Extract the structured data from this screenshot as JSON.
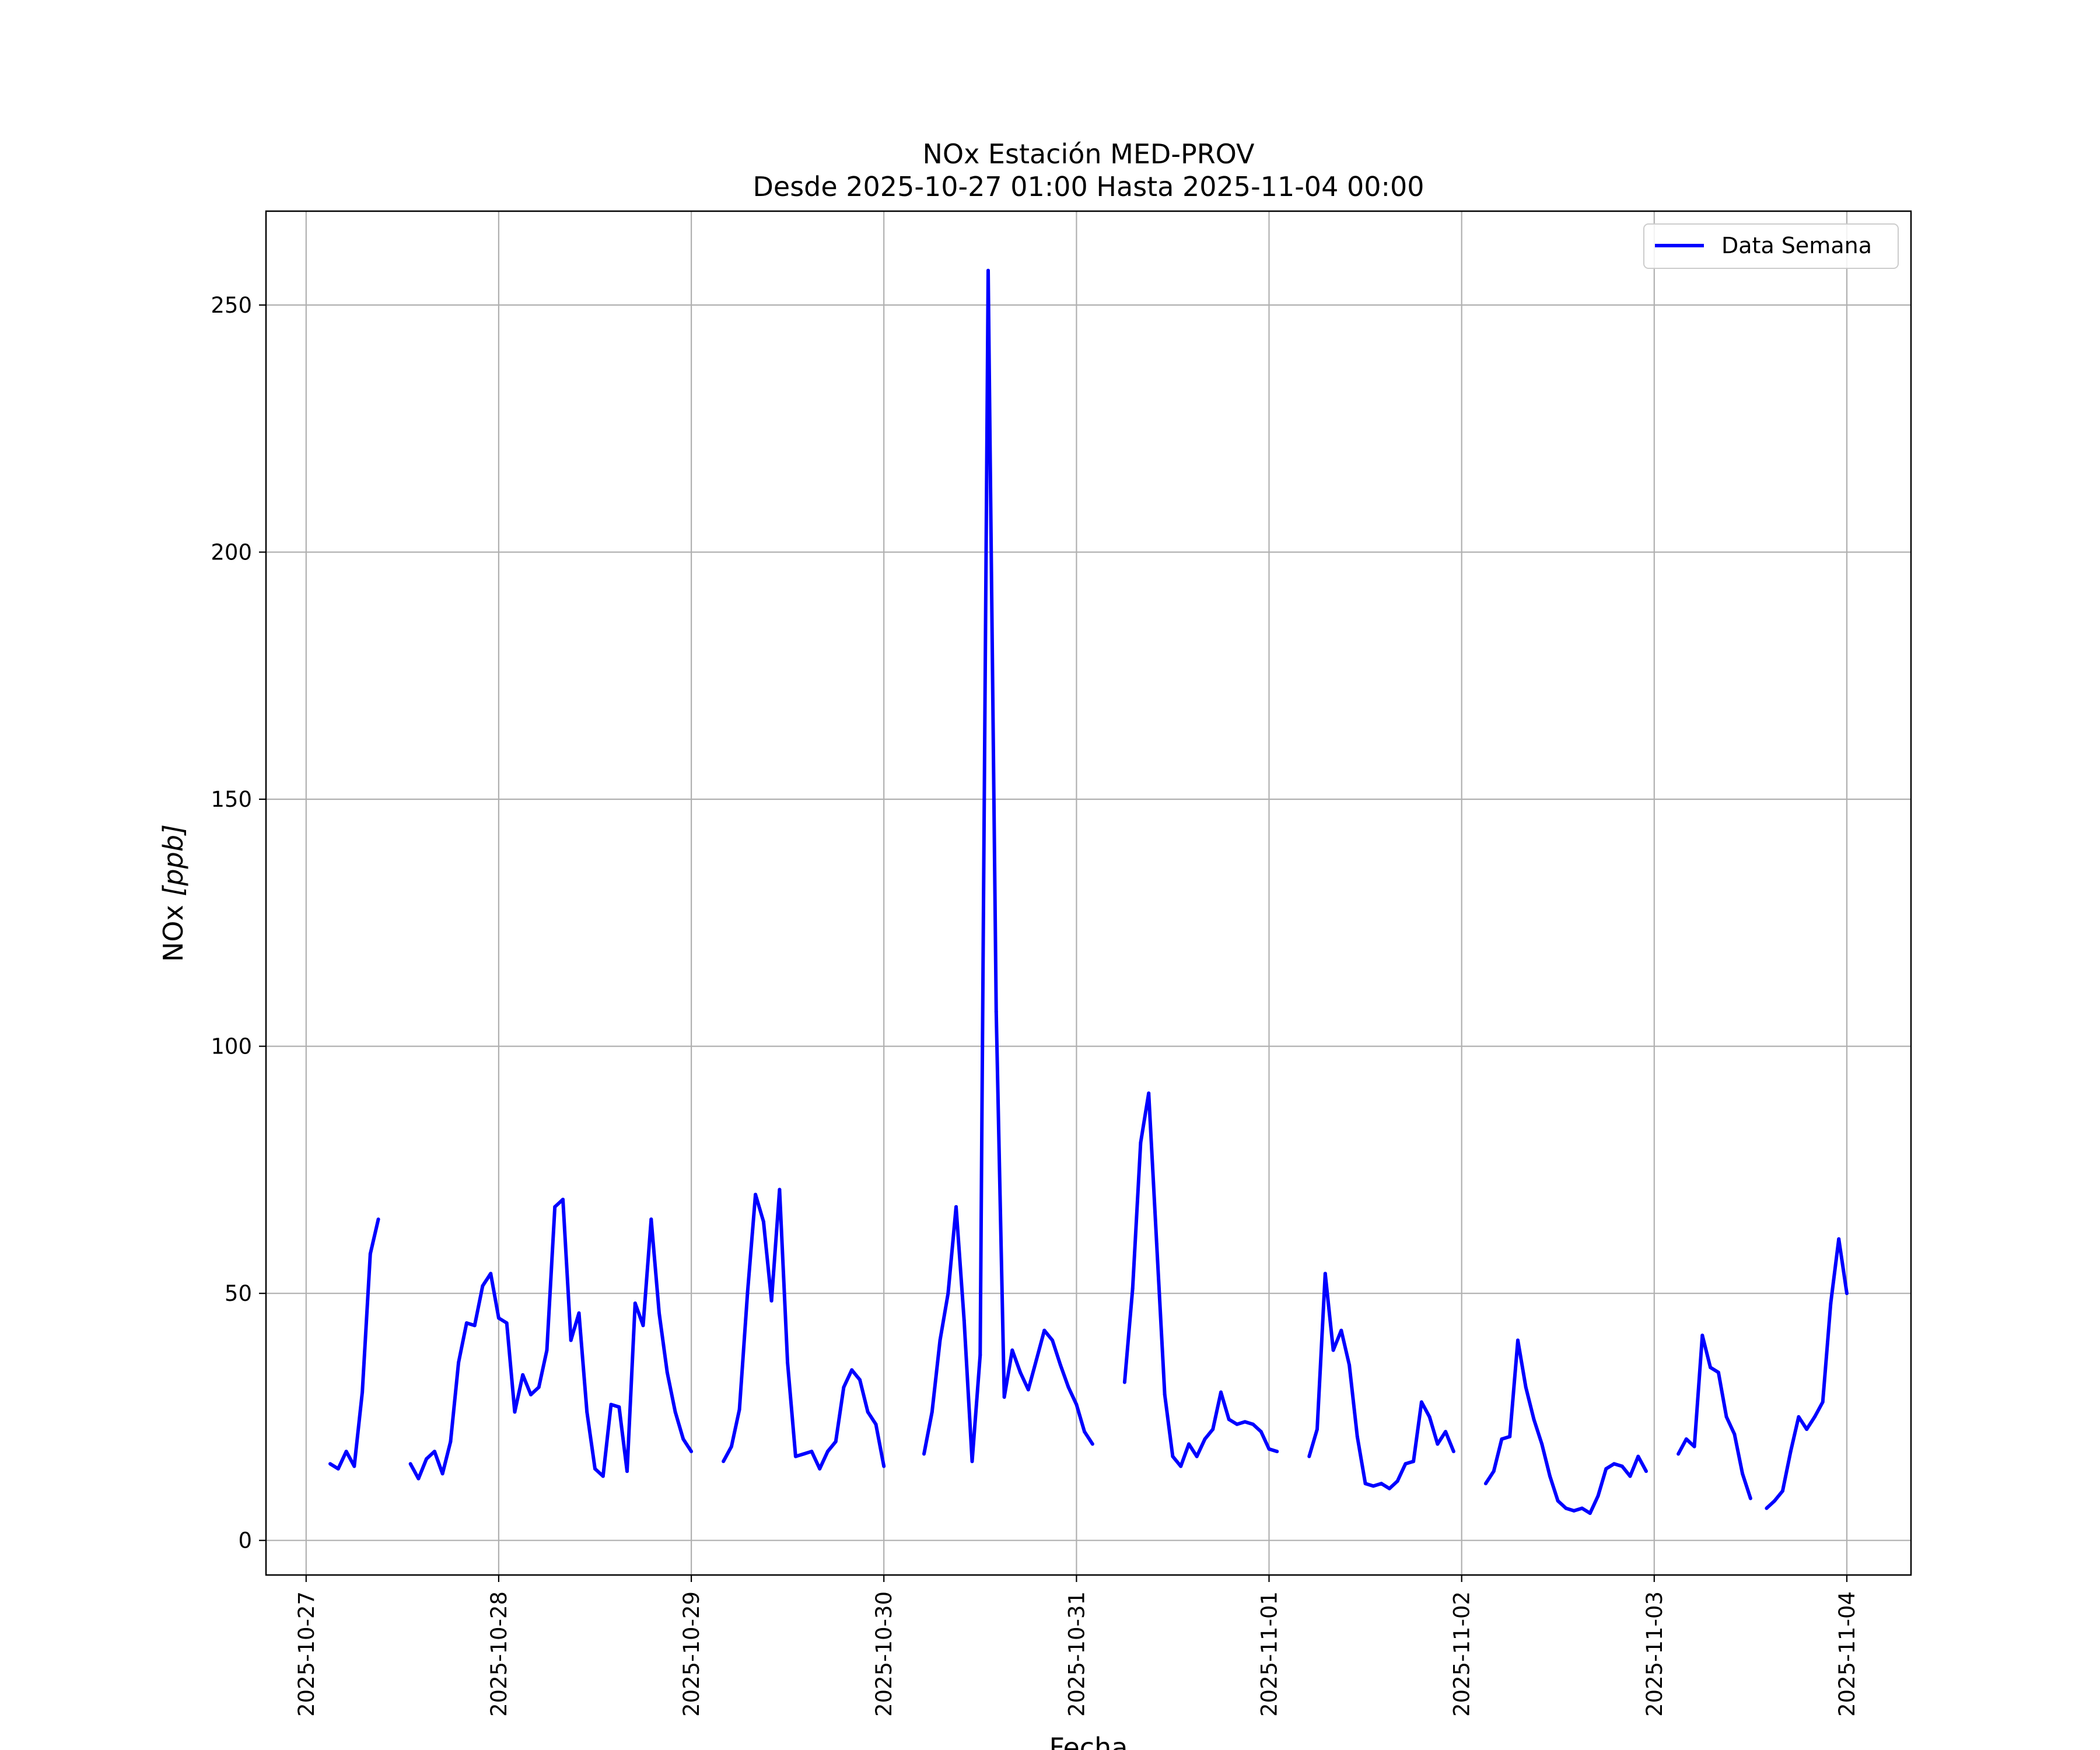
{
  "chart_data": {
    "type": "line",
    "title": "NOx Estación MED-PROV",
    "subtitle": "Desde 2025-10-27 01:00 Hasta 2025-11-04 00:00",
    "xlabel": "Fecha",
    "ylabel": "NOx [ppb]",
    "ylabel_main": "NOx ",
    "ylabel_unit": "[ppb]",
    "xlim": [
      "2025-10-26 19:00",
      "2025-11-04 08:00"
    ],
    "ylim": [
      -7,
      269
    ],
    "grid": true,
    "legend_position": "top-right",
    "x_ticks": [
      "2025-10-27",
      "2025-10-28",
      "2025-10-29",
      "2025-10-30",
      "2025-10-31",
      "2025-11-01",
      "2025-11-02",
      "2025-11-03",
      "2025-11-04"
    ],
    "y_ticks": [
      0,
      50,
      100,
      150,
      200,
      250
    ],
    "y_tick_labels": [
      "0",
      "50",
      "100",
      "150",
      "200",
      "250"
    ],
    "series": [
      {
        "name": "Data Semana",
        "color": "#0000ff",
        "segments": [
          [
            [
              "2025-10-27 03:00",
              15.5
            ],
            [
              "2025-10-27 04:00",
              14.5
            ],
            [
              "2025-10-27 05:00",
              18
            ],
            [
              "2025-10-27 06:00",
              15
            ],
            [
              "2025-10-27 07:00",
              30
            ],
            [
              "2025-10-27 08:00",
              58
            ],
            [
              "2025-10-27 09:00",
              65
            ]
          ],
          [
            [
              "2025-10-27 13:00",
              15.5
            ],
            [
              "2025-10-27 14:00",
              12.5
            ],
            [
              "2025-10-27 15:00",
              16.5
            ],
            [
              "2025-10-27 16:00",
              18
            ],
            [
              "2025-10-27 17:00",
              13.5
            ],
            [
              "2025-10-27 18:00",
              20
            ],
            [
              "2025-10-27 19:00",
              36
            ],
            [
              "2025-10-27 20:00",
              44
            ],
            [
              "2025-10-27 21:00",
              43.5
            ],
            [
              "2025-10-27 22:00",
              51.5
            ],
            [
              "2025-10-27 23:00",
              54
            ],
            [
              "2025-10-28 00:00",
              45
            ],
            [
              "2025-10-28 01:00",
              44
            ],
            [
              "2025-10-28 02:00",
              26
            ],
            [
              "2025-10-28 03:00",
              33.5
            ],
            [
              "2025-10-28 04:00",
              29.5
            ],
            [
              "2025-10-28 05:00",
              31
            ],
            [
              "2025-10-28 06:00",
              38.5
            ],
            [
              "2025-10-28 07:00",
              67.5
            ],
            [
              "2025-10-28 08:00",
              69
            ],
            [
              "2025-10-28 09:00",
              40.5
            ],
            [
              "2025-10-28 10:00",
              46
            ],
            [
              "2025-10-28 11:00",
              26
            ],
            [
              "2025-10-28 12:00",
              14.5
            ],
            [
              "2025-10-28 13:00",
              13
            ],
            [
              "2025-10-28 14:00",
              27.5
            ],
            [
              "2025-10-28 15:00",
              27
            ],
            [
              "2025-10-28 16:00",
              14
            ],
            [
              "2025-10-28 17:00",
              48
            ],
            [
              "2025-10-28 18:00",
              43.5
            ],
            [
              "2025-10-28 19:00",
              65
            ],
            [
              "2025-10-28 20:00",
              46
            ],
            [
              "2025-10-28 21:00",
              34
            ],
            [
              "2025-10-28 22:00",
              26
            ],
            [
              "2025-10-28 23:00",
              20.5
            ],
            [
              "2025-10-29 00:00",
              18
            ]
          ],
          [
            [
              "2025-10-29 04:00",
              16
            ],
            [
              "2025-10-29 05:00",
              19
            ],
            [
              "2025-10-29 06:00",
              26.5
            ],
            [
              "2025-10-29 07:00",
              50
            ],
            [
              "2025-10-29 08:00",
              70
            ],
            [
              "2025-10-29 09:00",
              64.5
            ],
            [
              "2025-10-29 10:00",
              48.5
            ],
            [
              "2025-10-29 11:00",
              71
            ],
            [
              "2025-10-29 12:00",
              36
            ],
            [
              "2025-10-29 13:00",
              17
            ],
            [
              "2025-10-29 14:00",
              17.5
            ],
            [
              "2025-10-29 15:00",
              18
            ],
            [
              "2025-10-29 16:00",
              14.5
            ],
            [
              "2025-10-29 17:00",
              18
            ],
            [
              "2025-10-29 18:00",
              20
            ],
            [
              "2025-10-29 19:00",
              31
            ],
            [
              "2025-10-29 20:00",
              34.5
            ],
            [
              "2025-10-29 21:00",
              32.5
            ],
            [
              "2025-10-29 22:00",
              26
            ],
            [
              "2025-10-29 23:00",
              23.5
            ],
            [
              "2025-10-30 00:00",
              15
            ]
          ],
          [
            [
              "2025-10-30 05:00",
              17.5
            ],
            [
              "2025-10-30 06:00",
              26
            ],
            [
              "2025-10-30 07:00",
              40.5
            ],
            [
              "2025-10-30 08:00",
              50
            ],
            [
              "2025-10-30 09:00",
              67.5
            ],
            [
              "2025-10-30 10:00",
              44.5
            ],
            [
              "2025-10-30 11:00",
              16
            ],
            [
              "2025-10-30 12:00",
              37.5
            ],
            [
              "2025-10-30 13:00",
              257
            ],
            [
              "2025-10-30 14:00",
              107
            ],
            [
              "2025-10-30 15:00",
              29
            ],
            [
              "2025-10-30 16:00",
              38.5
            ],
            [
              "2025-10-30 17:00",
              34
            ],
            [
              "2025-10-30 18:00",
              30.5
            ],
            [
              "2025-10-30 19:00",
              36.5
            ],
            [
              "2025-10-30 20:00",
              42.5
            ],
            [
              "2025-10-30 21:00",
              40.5
            ],
            [
              "2025-10-30 22:00",
              35.5
            ],
            [
              "2025-10-30 23:00",
              31
            ],
            [
              "2025-10-31 00:00",
              27.5
            ],
            [
              "2025-10-31 01:00",
              22
            ],
            [
              "2025-10-31 02:00",
              19.5
            ]
          ],
          [
            [
              "2025-10-31 06:00",
              32
            ],
            [
              "2025-10-31 07:00",
              51
            ],
            [
              "2025-10-31 08:00",
              80.5
            ],
            [
              "2025-10-31 09:00",
              90.5
            ],
            [
              "2025-10-31 10:00",
              60
            ],
            [
              "2025-10-31 11:00",
              29.5
            ],
            [
              "2025-10-31 12:00",
              17
            ],
            [
              "2025-10-31 13:00",
              15
            ],
            [
              "2025-10-31 14:00",
              19.5
            ],
            [
              "2025-10-31 15:00",
              17
            ],
            [
              "2025-10-31 16:00",
              20.5
            ],
            [
              "2025-10-31 17:00",
              22.5
            ],
            [
              "2025-10-31 18:00",
              30
            ],
            [
              "2025-10-31 19:00",
              24.5
            ],
            [
              "2025-10-31 20:00",
              23.5
            ],
            [
              "2025-10-31 21:00",
              24
            ],
            [
              "2025-10-31 22:00",
              23.5
            ],
            [
              "2025-10-31 23:00",
              22
            ],
            [
              "2025-11-01 00:00",
              18.5
            ],
            [
              "2025-11-01 01:00",
              18
            ]
          ],
          [
            [
              "2025-11-01 05:00",
              17
            ],
            [
              "2025-11-01 06:00",
              22.5
            ],
            [
              "2025-11-01 07:00",
              54
            ],
            [
              "2025-11-01 08:00",
              38.5
            ],
            [
              "2025-11-01 09:00",
              42.5
            ],
            [
              "2025-11-01 10:00",
              35.5
            ],
            [
              "2025-11-01 11:00",
              21
            ],
            [
              "2025-11-01 12:00",
              11.5
            ],
            [
              "2025-11-01 13:00",
              11
            ],
            [
              "2025-11-01 14:00",
              11.5
            ],
            [
              "2025-11-01 15:00",
              10.5
            ],
            [
              "2025-11-01 16:00",
              12
            ],
            [
              "2025-11-01 17:00",
              15.5
            ],
            [
              "2025-11-01 18:00",
              16
            ],
            [
              "2025-11-01 19:00",
              28
            ],
            [
              "2025-11-01 20:00",
              25
            ],
            [
              "2025-11-01 21:00",
              19.5
            ],
            [
              "2025-11-01 22:00",
              22
            ],
            [
              "2025-11-01 23:00",
              18
            ]
          ],
          [
            [
              "2025-11-02 03:00",
              11.5
            ],
            [
              "2025-11-02 04:00",
              14
            ],
            [
              "2025-11-02 05:00",
              20.5
            ],
            [
              "2025-11-02 06:00",
              21
            ],
            [
              "2025-11-02 07:00",
              40.5
            ],
            [
              "2025-11-02 08:00",
              31
            ],
            [
              "2025-11-02 09:00",
              24.5
            ],
            [
              "2025-11-02 10:00",
              19.5
            ],
            [
              "2025-11-02 11:00",
              13
            ],
            [
              "2025-11-02 12:00",
              8
            ],
            [
              "2025-11-02 13:00",
              6.5
            ],
            [
              "2025-11-02 14:00",
              6
            ],
            [
              "2025-11-02 15:00",
              6.5
            ],
            [
              "2025-11-02 16:00",
              5.5
            ],
            [
              "2025-11-02 17:00",
              9
            ],
            [
              "2025-11-02 18:00",
              14.5
            ],
            [
              "2025-11-02 19:00",
              15.5
            ],
            [
              "2025-11-02 20:00",
              15
            ],
            [
              "2025-11-02 21:00",
              13
            ],
            [
              "2025-11-02 22:00",
              17
            ],
            [
              "2025-11-02 23:00",
              14
            ]
          ],
          [
            [
              "2025-11-03 03:00",
              17.5
            ],
            [
              "2025-11-03 04:00",
              20.5
            ],
            [
              "2025-11-03 05:00",
              19
            ],
            [
              "2025-11-03 06:00",
              41.5
            ],
            [
              "2025-11-03 07:00",
              35
            ],
            [
              "2025-11-03 08:00",
              34
            ],
            [
              "2025-11-03 09:00",
              25
            ],
            [
              "2025-11-03 10:00",
              21.5
            ],
            [
              "2025-11-03 11:00",
              13.5
            ],
            [
              "2025-11-03 12:00",
              8.5
            ]
          ],
          [
            [
              "2025-11-03 14:00",
              6.5
            ],
            [
              "2025-11-03 15:00",
              8
            ],
            [
              "2025-11-03 16:00",
              10
            ],
            [
              "2025-11-03 17:00",
              18
            ],
            [
              "2025-11-03 18:00",
              25
            ],
            [
              "2025-11-03 19:00",
              22.5
            ],
            [
              "2025-11-03 20:00",
              25
            ],
            [
              "2025-11-03 21:00",
              28
            ],
            [
              "2025-11-03 22:00",
              48
            ],
            [
              "2025-11-03 23:00",
              61
            ],
            [
              "2025-11-04 00:00",
              50
            ]
          ]
        ]
      }
    ]
  }
}
